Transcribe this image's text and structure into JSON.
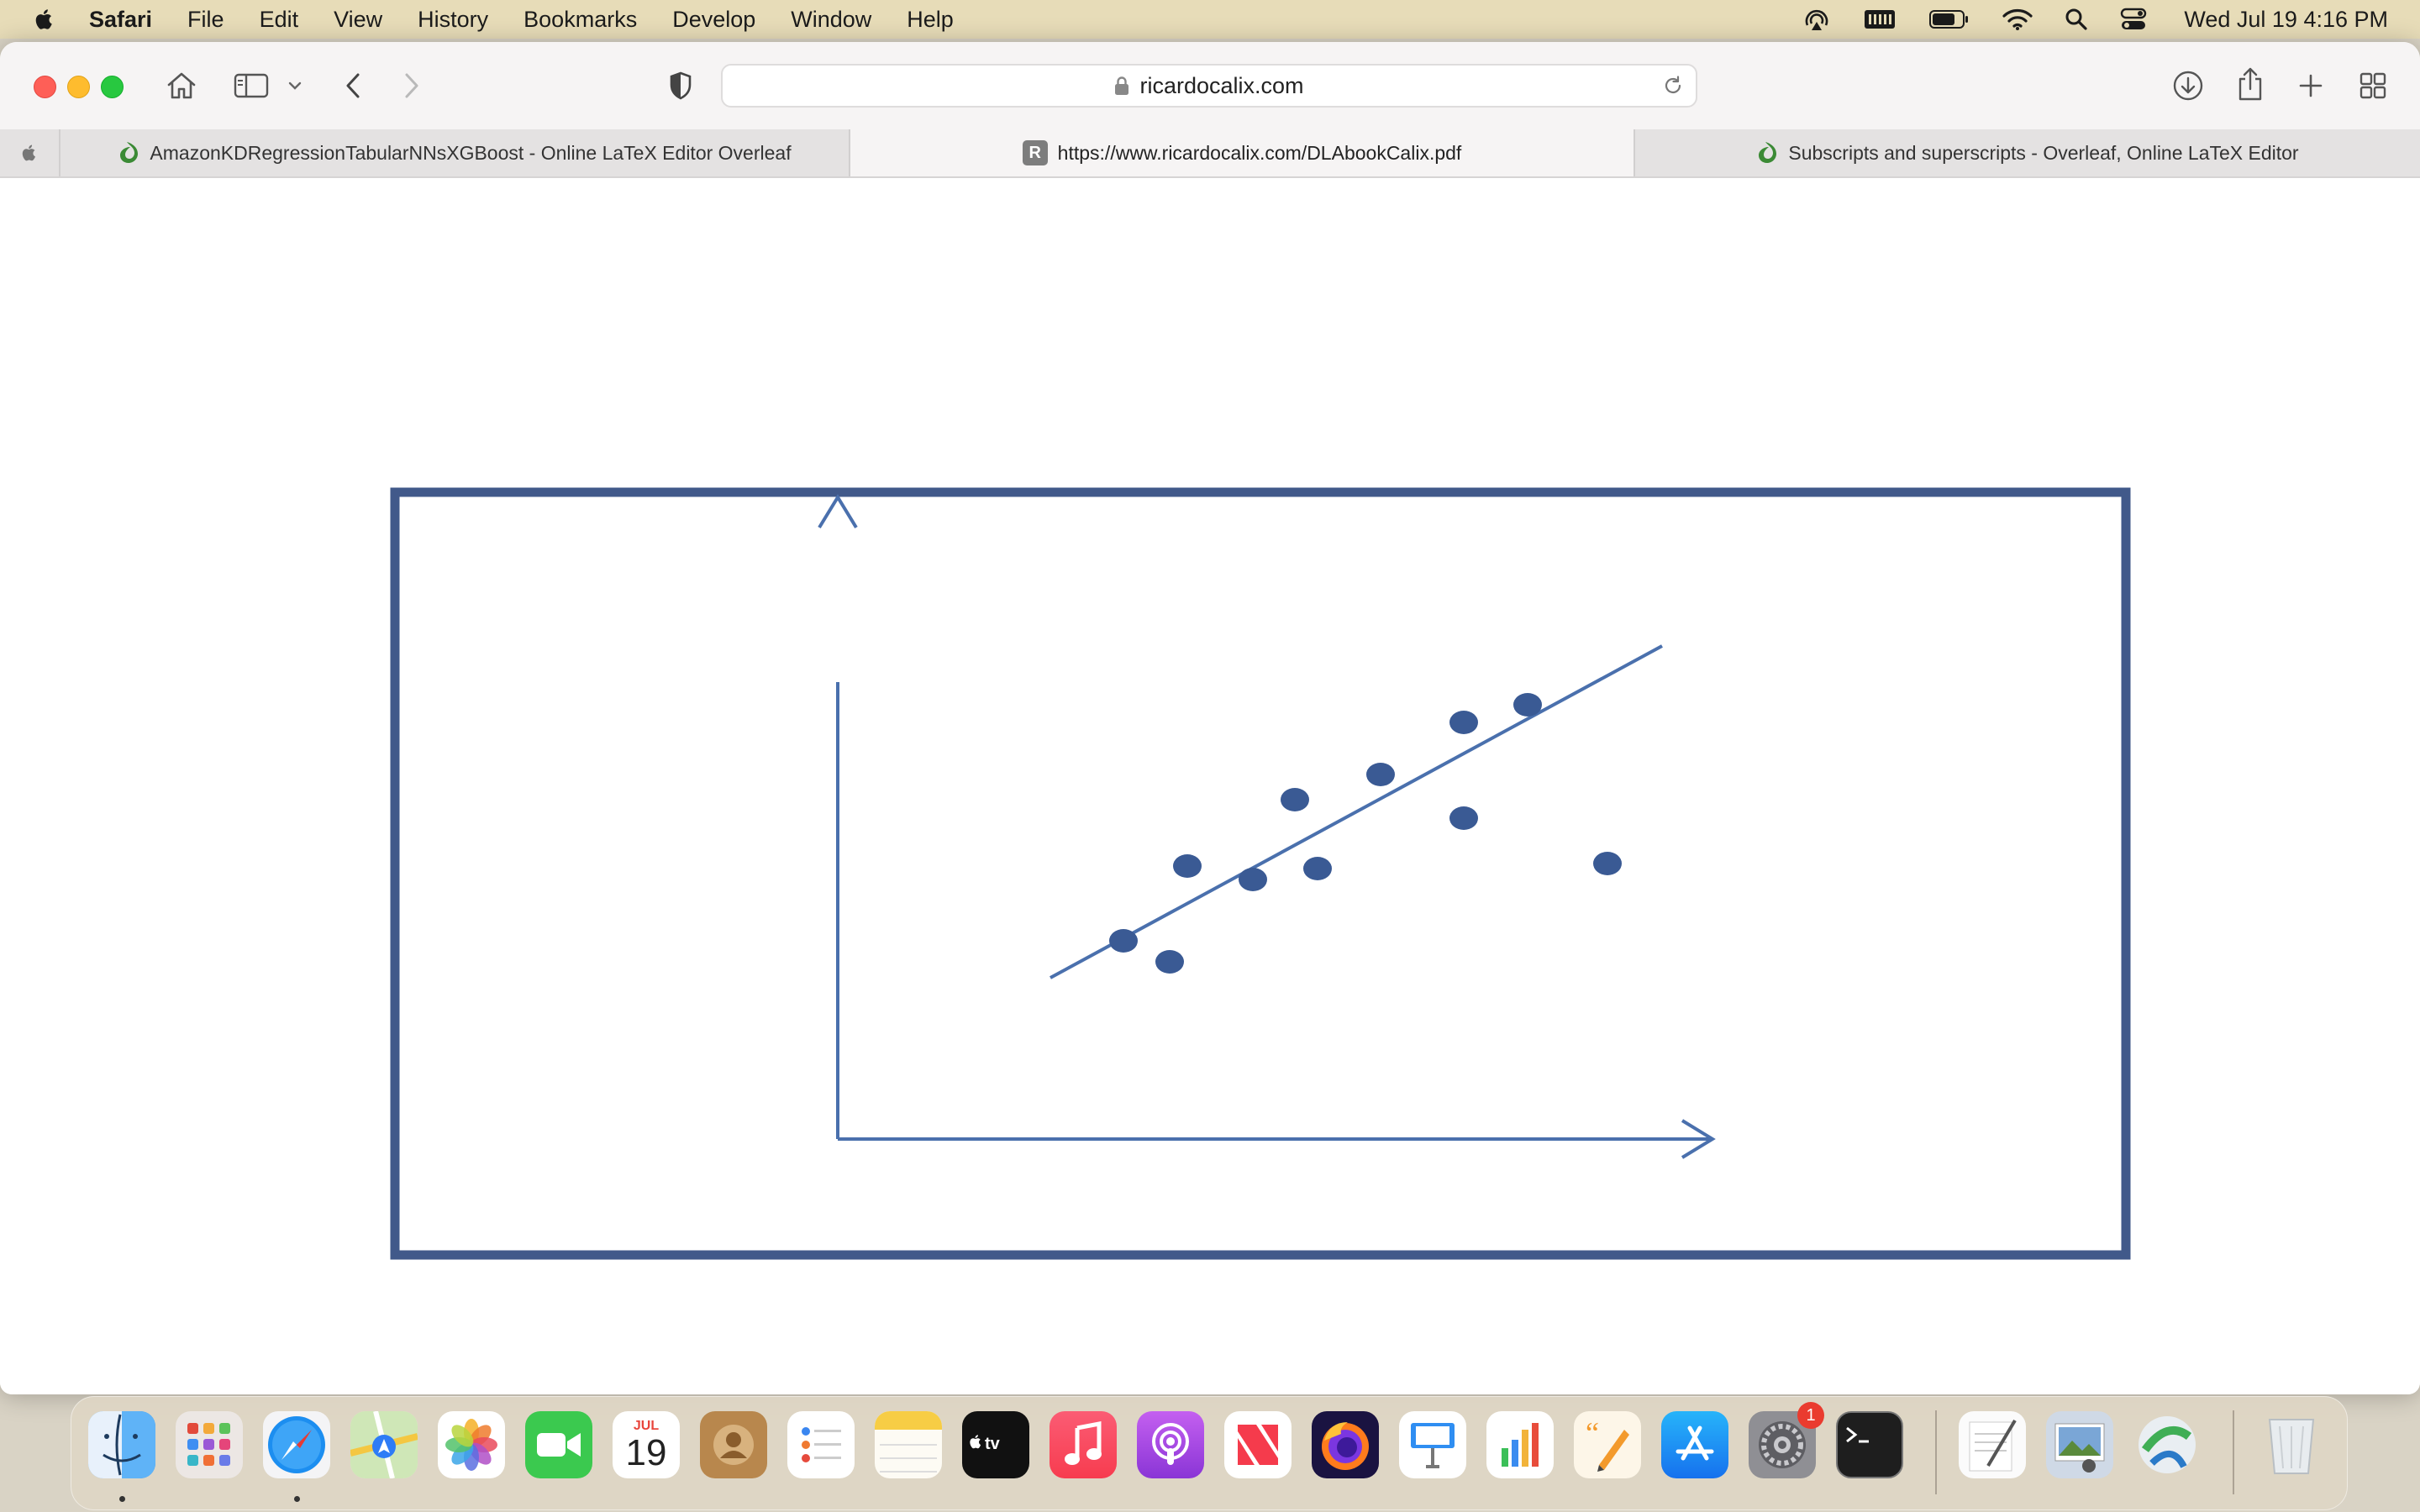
{
  "menubar": {
    "app_name": "Safari",
    "items": [
      "File",
      "Edit",
      "View",
      "History",
      "Bookmarks",
      "Develop",
      "Window",
      "Help"
    ],
    "status_icons": [
      "airplay-audio-icon",
      "memory-icon",
      "battery-icon",
      "wifi-icon",
      "spotlight-search-icon",
      "control-center-icon"
    ],
    "clock": "Wed Jul 19  4:16 PM"
  },
  "toolbar": {
    "url_display": "ricardocalix.com"
  },
  "tabs": [
    {
      "label": "AmazonKDRegressionTabularNNsXGBoost - Online LaTeX Editor Overleaf",
      "favicon": "overleaf-icon",
      "active": false
    },
    {
      "label": "https://www.ricardocalix.com/DLAbookCalix.pdf",
      "favicon": "letter-r-icon",
      "favicon_letter": "R",
      "active": true
    },
    {
      "label": "Subscripts and superscripts - Overleaf, Online LaTeX Editor",
      "favicon": "overleaf-icon",
      "active": false
    }
  ],
  "colors": {
    "figure_border": "#41598a",
    "axis_and_line": "#4a70ad",
    "points": "#3a5a94",
    "menubar_bg": "#e7dcb8"
  },
  "dock": {
    "apps": [
      "Finder",
      "Launchpad",
      "Safari",
      "Maps",
      "Photos",
      "FaceTime",
      "Calendar",
      "Contacts",
      "Reminders",
      "Notes",
      "TV",
      "Music",
      "Podcasts",
      "News",
      "Firefox",
      "Keynote",
      "Numbers",
      "Pages",
      "App Store",
      "System Settings",
      "Terminal",
      "TextEdit",
      "Preview",
      "Network Utility",
      "Trash"
    ],
    "calendar_month": "JUL",
    "calendar_day": "19",
    "settings_badge": "1"
  }
}
